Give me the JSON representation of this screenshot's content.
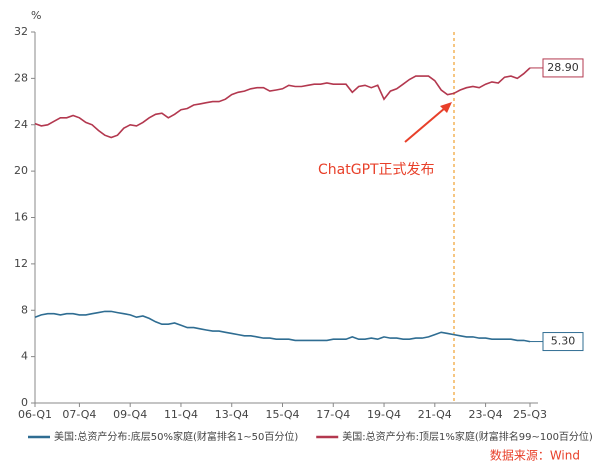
{
  "chart_data": {
    "type": "line",
    "y_axis_label": "%",
    "annotation": "ChatGPT正式发布",
    "source": "数据来源：Wind",
    "categories": [
      "06-Q1",
      null,
      null,
      null,
      null,
      null,
      null,
      "07-Q4",
      null,
      null,
      null,
      null,
      null,
      null,
      null,
      "09-Q4",
      null,
      null,
      null,
      null,
      null,
      null,
      null,
      "11-Q4",
      null,
      null,
      null,
      null,
      null,
      null,
      null,
      "13-Q4",
      null,
      null,
      null,
      null,
      null,
      null,
      null,
      "15-Q4",
      null,
      null,
      null,
      null,
      null,
      null,
      null,
      "17-Q4",
      null,
      null,
      null,
      null,
      null,
      null,
      null,
      "19-Q4",
      null,
      null,
      null,
      null,
      null,
      null,
      null,
      "21-Q4",
      null,
      null,
      null,
      null,
      null,
      null,
      null,
      "23-Q4",
      null,
      null,
      null,
      null,
      null,
      null,
      "25-Q3"
    ],
    "series": [
      {
        "name": "美国:总资产分布:底层50%家庭(财富排名1~50百分位)",
        "color": "#2f6d92",
        "values": [
          7.4,
          7.6,
          7.7,
          7.7,
          7.6,
          7.7,
          7.7,
          7.6,
          7.6,
          7.7,
          7.8,
          7.9,
          7.9,
          7.8,
          7.7,
          7.6,
          7.4,
          7.5,
          7.3,
          7.0,
          6.8,
          6.8,
          6.9,
          6.7,
          6.5,
          6.5,
          6.4,
          6.3,
          6.2,
          6.2,
          6.1,
          6.0,
          5.9,
          5.8,
          5.8,
          5.7,
          5.6,
          5.6,
          5.5,
          5.5,
          5.5,
          5.4,
          5.4,
          5.4,
          5.4,
          5.4,
          5.4,
          5.5,
          5.5,
          5.5,
          5.7,
          5.5,
          5.5,
          5.6,
          5.5,
          5.7,
          5.6,
          5.6,
          5.5,
          5.5,
          5.6,
          5.6,
          5.7,
          5.9,
          6.1,
          6.0,
          5.9,
          5.8,
          5.7,
          5.7,
          5.6,
          5.6,
          5.5,
          5.5,
          5.5,
          5.5,
          5.4,
          5.4,
          5.3
        ],
        "value_labels": [
          null,
          null,
          null,
          null,
          null,
          null,
          null,
          null,
          null,
          null,
          null,
          null,
          null,
          null,
          null,
          null,
          null,
          null,
          null,
          null,
          null,
          null,
          null,
          null,
          null,
          null,
          null,
          null,
          null,
          null,
          null,
          null,
          null,
          null,
          null,
          null,
          null,
          null,
          null,
          null,
          null,
          null,
          null,
          null,
          null,
          null,
          null,
          null,
          null,
          null,
          null,
          null,
          null,
          null,
          null,
          null,
          null,
          null,
          null,
          null,
          null,
          null,
          null,
          null,
          null,
          null,
          null,
          null,
          null,
          null,
          null,
          null,
          null,
          null,
          null,
          null,
          null,
          null,
          "5.30"
        ]
      },
      {
        "name": "美国:总资产分布:顶层1%家庭(财富排名99~100百分位)",
        "color": "#b3384f",
        "values": [
          24.1,
          23.9,
          24.0,
          24.3,
          24.6,
          24.6,
          24.8,
          24.6,
          24.2,
          24.0,
          23.5,
          23.1,
          22.9,
          23.1,
          23.7,
          24.0,
          23.9,
          24.2,
          24.6,
          24.9,
          25.0,
          24.6,
          24.9,
          25.3,
          25.4,
          25.7,
          25.8,
          25.9,
          26.0,
          26.0,
          26.2,
          26.6,
          26.8,
          26.9,
          27.1,
          27.2,
          27.2,
          26.9,
          27.0,
          27.1,
          27.4,
          27.3,
          27.3,
          27.4,
          27.5,
          27.5,
          27.6,
          27.5,
          27.5,
          27.5,
          26.8,
          27.3,
          27.4,
          27.2,
          27.4,
          26.2,
          26.9,
          27.1,
          27.5,
          27.9,
          28.2,
          28.2,
          28.2,
          27.8,
          27.0,
          26.6,
          26.7,
          27.0,
          27.2,
          27.3,
          27.2,
          27.5,
          27.7,
          27.6,
          28.1,
          28.2,
          28.0,
          28.4,
          28.9
        ],
        "value_labels": [
          null,
          null,
          null,
          null,
          null,
          null,
          null,
          null,
          null,
          null,
          null,
          null,
          null,
          null,
          null,
          null,
          null,
          null,
          null,
          null,
          null,
          null,
          null,
          null,
          null,
          null,
          null,
          null,
          null,
          null,
          null,
          null,
          null,
          null,
          null,
          null,
          null,
          null,
          null,
          null,
          null,
          null,
          null,
          null,
          null,
          null,
          null,
          null,
          null,
          null,
          null,
          null,
          null,
          null,
          null,
          null,
          null,
          null,
          null,
          null,
          null,
          null,
          null,
          null,
          null,
          null,
          null,
          null,
          null,
          null,
          null,
          null,
          null,
          null,
          null,
          null,
          null,
          null,
          "28.90"
        ]
      }
    ],
    "ylim": [
      0,
      32
    ],
    "yticks": [
      0,
      4,
      8,
      12,
      16,
      20,
      24,
      28,
      32
    ],
    "grid": false
  }
}
